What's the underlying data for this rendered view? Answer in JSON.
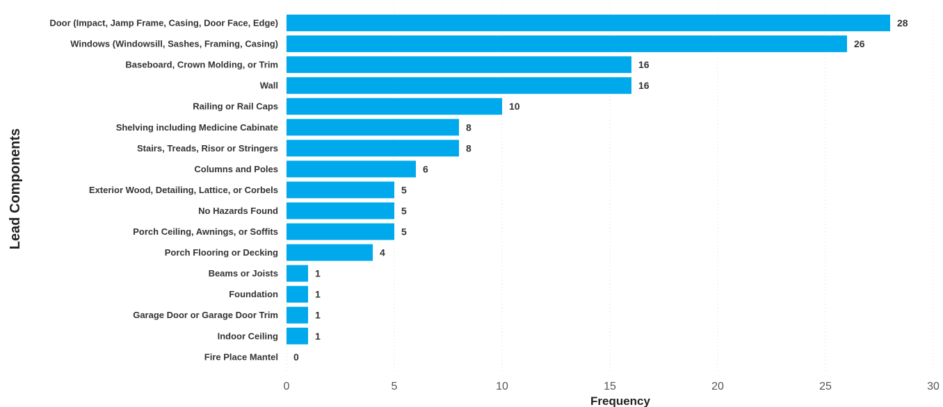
{
  "chart_data": {
    "type": "bar",
    "orientation": "horizontal",
    "title": "",
    "xlabel": "Frequency",
    "ylabel": "Lead Components",
    "xlim": [
      0,
      30
    ],
    "xticks": [
      0,
      5,
      10,
      15,
      20,
      25,
      30
    ],
    "grid": true,
    "bar_color": "#00A9EC",
    "categories": [
      "Door (Impact, Jamp Frame, Casing, Door Face, Edge)",
      "Windows (Windowsill, Sashes, Framing, Casing)",
      "Baseboard, Crown Molding, or Trim",
      "Wall",
      "Railing or Rail Caps",
      "Shelving including Medicine Cabinate",
      "Stairs, Treads, Risor or Stringers",
      "Columns and Poles",
      "Exterior Wood, Detailing, Lattice, or Corbels",
      "No Hazards Found",
      "Porch Ceiling, Awnings, or Soffits",
      "Porch Flooring or Decking",
      "Beams or Joists",
      "Foundation",
      "Garage Door or Garage Door Trim",
      "Indoor Ceiling",
      "Fire Place Mantel"
    ],
    "values": [
      28,
      26,
      16,
      16,
      10,
      8,
      8,
      6,
      5,
      5,
      5,
      4,
      1,
      1,
      1,
      1,
      0
    ]
  }
}
